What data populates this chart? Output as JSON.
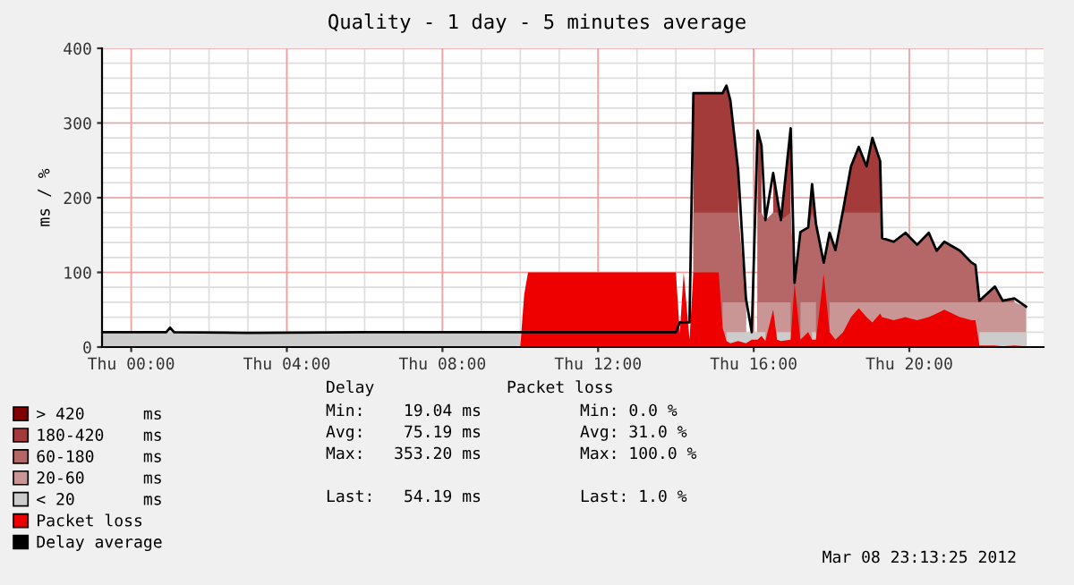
{
  "chart_data": {
    "type": "area",
    "title": "Quality - 1 day - 5 minutes average",
    "ylabel": "ms / %",
    "x": [
      "2012-03-07T23:15",
      "2012-03-08T00:00",
      "2012-03-08T00:54",
      "2012-03-08T01:00",
      "2012-03-08T01:06",
      "2012-03-08T03:00",
      "2012-03-08T06:00",
      "2012-03-08T09:00",
      "2012-03-08T10:00",
      "2012-03-08T10:06",
      "2012-03-08T10:12",
      "2012-03-08T14:00",
      "2012-03-08T14:06",
      "2012-03-08T14:12",
      "2012-03-08T14:21",
      "2012-03-08T14:27",
      "2012-03-08T15:06",
      "2012-03-08T15:12",
      "2012-03-08T15:18",
      "2012-03-08T15:24",
      "2012-03-08T15:36",
      "2012-03-08T15:48",
      "2012-03-08T15:57",
      "2012-03-08T16:06",
      "2012-03-08T16:12",
      "2012-03-08T16:18",
      "2012-03-08T16:30",
      "2012-03-08T16:36",
      "2012-03-08T16:42",
      "2012-03-08T16:57",
      "2012-03-08T17:03",
      "2012-03-08T17:12",
      "2012-03-08T17:24",
      "2012-03-08T17:30",
      "2012-03-08T17:36",
      "2012-03-08T17:48",
      "2012-03-08T17:57",
      "2012-03-08T18:06",
      "2012-03-08T18:18",
      "2012-03-08T18:30",
      "2012-03-08T18:42",
      "2012-03-08T18:54",
      "2012-03-08T19:03",
      "2012-03-08T19:15",
      "2012-03-08T19:18",
      "2012-03-08T19:36",
      "2012-03-08T19:54",
      "2012-03-08T20:12",
      "2012-03-08T20:30",
      "2012-03-08T20:42",
      "2012-03-08T20:54",
      "2012-03-08T21:18",
      "2012-03-08T21:36",
      "2012-03-08T21:42",
      "2012-03-08T21:48",
      "2012-03-08T22:12",
      "2012-03-08T22:24",
      "2012-03-08T22:42",
      "2012-03-08T23:00"
    ],
    "series": [
      {
        "name": "> 420      ms",
        "color": "#800000",
        "values": [
          null,
          null,
          null,
          null,
          null,
          null,
          null,
          null,
          null,
          null,
          null,
          null,
          null,
          null,
          null,
          null,
          null,
          null,
          null,
          null,
          null,
          null,
          null,
          null,
          null,
          null,
          null,
          null,
          null,
          null,
          null,
          null,
          null,
          null,
          null,
          null,
          null,
          null,
          null,
          null,
          null,
          null,
          null,
          null,
          null,
          null,
          null,
          null,
          null,
          null,
          null,
          null,
          null,
          null,
          null,
          null,
          null,
          null,
          null
        ]
      },
      {
        "name": "180-420    ms",
        "color": "#a33b3b",
        "values": [
          null,
          null,
          null,
          null,
          null,
          null,
          null,
          null,
          null,
          null,
          null,
          null,
          null,
          null,
          null,
          340,
          340,
          340,
          350,
          330,
          237,
          null,
          null,
          290,
          270,
          null,
          233,
          201,
          170,
          293,
          null,
          null,
          160,
          218,
          165,
          null,
          null,
          null,
          184,
          242,
          268,
          242,
          280,
          249,
          null,
          null,
          null,
          null,
          null,
          null,
          null,
          null,
          null,
          null,
          null,
          null,
          null,
          null,
          null
        ]
      },
      {
        "name": "60-180     ms",
        "color": "#b56767",
        "values": [
          null,
          null,
          null,
          null,
          null,
          null,
          null,
          null,
          null,
          null,
          null,
          null,
          null,
          null,
          null,
          180,
          180,
          180,
          180,
          180,
          180,
          65,
          null,
          180,
          180,
          170,
          180,
          180,
          170,
          180,
          86,
          154,
          160,
          180,
          165,
          113,
          153,
          130,
          180,
          180,
          180,
          180,
          180,
          180,
          146,
          141,
          153,
          137,
          153,
          129,
          141,
          129,
          113,
          110,
          62,
          81,
          62,
          65,
          null
        ]
      },
      {
        "name": "20-60      ms",
        "color": "#c99595",
        "values": [
          null,
          null,
          null,
          null,
          null,
          null,
          null,
          null,
          null,
          null,
          null,
          null,
          null,
          null,
          null,
          null,
          null,
          60,
          60,
          60,
          60,
          60,
          null,
          60,
          60,
          60,
          60,
          60,
          60,
          60,
          null,
          60,
          60,
          60,
          60,
          null,
          60,
          60,
          60,
          60,
          60,
          60,
          60,
          60,
          60,
          60,
          60,
          60,
          60,
          60,
          60,
          60,
          60,
          60,
          60,
          60,
          60,
          60,
          54
        ]
      },
      {
        "name": "< 20       ms",
        "color": "#cccccc",
        "values": [
          20,
          20,
          20,
          20,
          20,
          19,
          20,
          20,
          20,
          null,
          null,
          null,
          null,
          null,
          null,
          null,
          null,
          null,
          20,
          20,
          20,
          20,
          20,
          20,
          20,
          20,
          null,
          20,
          20,
          20,
          null,
          null,
          null,
          20,
          20,
          null,
          null,
          null,
          null,
          null,
          null,
          null,
          null,
          null,
          null,
          null,
          null,
          null,
          null,
          null,
          null,
          null,
          null,
          null,
          20,
          20,
          20,
          20,
          20
        ]
      },
      {
        "name": "Packet loss",
        "color": "#ee0000",
        "values": [
          0,
          0,
          0,
          0,
          0,
          0,
          0,
          0,
          0,
          70,
          100,
          100,
          18,
          100,
          10,
          100,
          100,
          26,
          8,
          5,
          8,
          5,
          10,
          10,
          15,
          8,
          50,
          10,
          8,
          10,
          86,
          10,
          20,
          10,
          10,
          98,
          20,
          10,
          20,
          40,
          52,
          40,
          33,
          45,
          40,
          36,
          40,
          36,
          40,
          45,
          50,
          40,
          36,
          36,
          2,
          2,
          1,
          2,
          1
        ]
      },
      {
        "name": "Delay average",
        "type": "line",
        "color": "#000000",
        "values": [
          20,
          20,
          20,
          26,
          20,
          19,
          20,
          20,
          20,
          20,
          20,
          20,
          33,
          33,
          33,
          340,
          340,
          340,
          350,
          330,
          237,
          65,
          20,
          290,
          270,
          170,
          233,
          201,
          170,
          293,
          86,
          154,
          160,
          218,
          165,
          113,
          153,
          130,
          184,
          242,
          268,
          242,
          280,
          249,
          146,
          141,
          153,
          137,
          153,
          129,
          141,
          129,
          113,
          110,
          62,
          81,
          62,
          65,
          54
        ]
      }
    ],
    "xlim": [
      "2012-03-07T23:15",
      "2012-03-08T23:27"
    ],
    "ylim": [
      0,
      400
    ],
    "xticks": [
      {
        "value": "2012-03-08T00:00",
        "label": "Thu 00:00"
      },
      {
        "value": "2012-03-08T04:00",
        "label": "Thu 04:00"
      },
      {
        "value": "2012-03-08T08:00",
        "label": "Thu 08:00"
      },
      {
        "value": "2012-03-08T12:00",
        "label": "Thu 12:00"
      },
      {
        "value": "2012-03-08T16:00",
        "label": "Thu 16:00"
      },
      {
        "value": "2012-03-08T20:00",
        "label": "Thu 20:00"
      }
    ],
    "yticks": [
      0,
      100,
      200,
      300,
      400
    ],
    "grid": true,
    "legend": "bottom left",
    "annotations": [
      "Delay",
      "Packet loss",
      "Min:    19.04 ms",
      "Min: 0.0 %",
      "Avg:    75.19 ms",
      "Avg: 31.0 %",
      "Max:   353.20 ms",
      "Max: 100.0 %",
      "Last:   54.19 ms",
      "Last: 1.0 %",
      "Mar 08 23:13:25 2012"
    ]
  }
}
